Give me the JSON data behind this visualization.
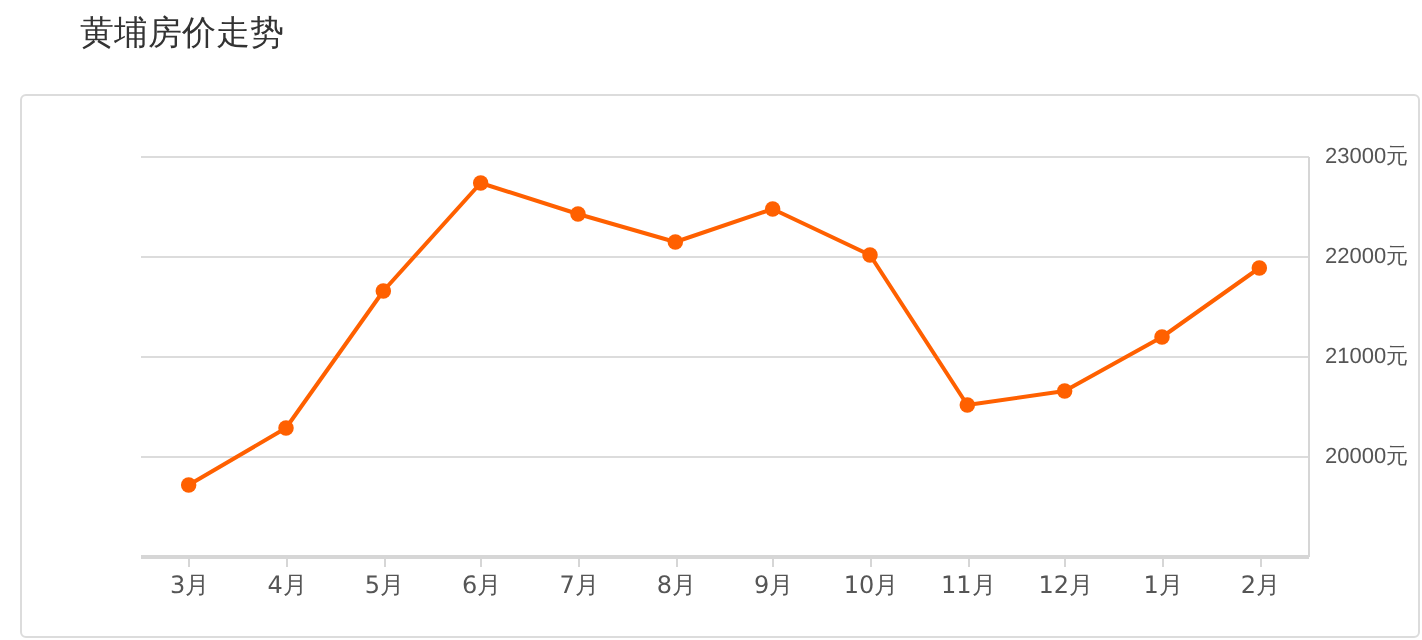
{
  "chart_data": {
    "type": "line",
    "title": "黄埔房价走势",
    "categories": [
      "3月",
      "4月",
      "5月",
      "6月",
      "7月",
      "8月",
      "9月",
      "10月",
      "11月",
      "12月",
      "1月",
      "2月"
    ],
    "series": [
      {
        "color": "#ff6000",
        "values": [
          19710,
          20280,
          21650,
          22730,
          22420,
          22140,
          22470,
          22010,
          20510,
          20650,
          21190,
          21880
        ]
      }
    ],
    "ylim": [
      19000,
      23000
    ],
    "yticks": [
      {
        "value": 20000,
        "label": "20000元"
      },
      {
        "value": 21000,
        "label": "21000元"
      },
      {
        "value": 22000,
        "label": "22000元"
      },
      {
        "value": 23000,
        "label": "23000元"
      }
    ],
    "grid": "y",
    "marker": "circle",
    "legend": false
  }
}
